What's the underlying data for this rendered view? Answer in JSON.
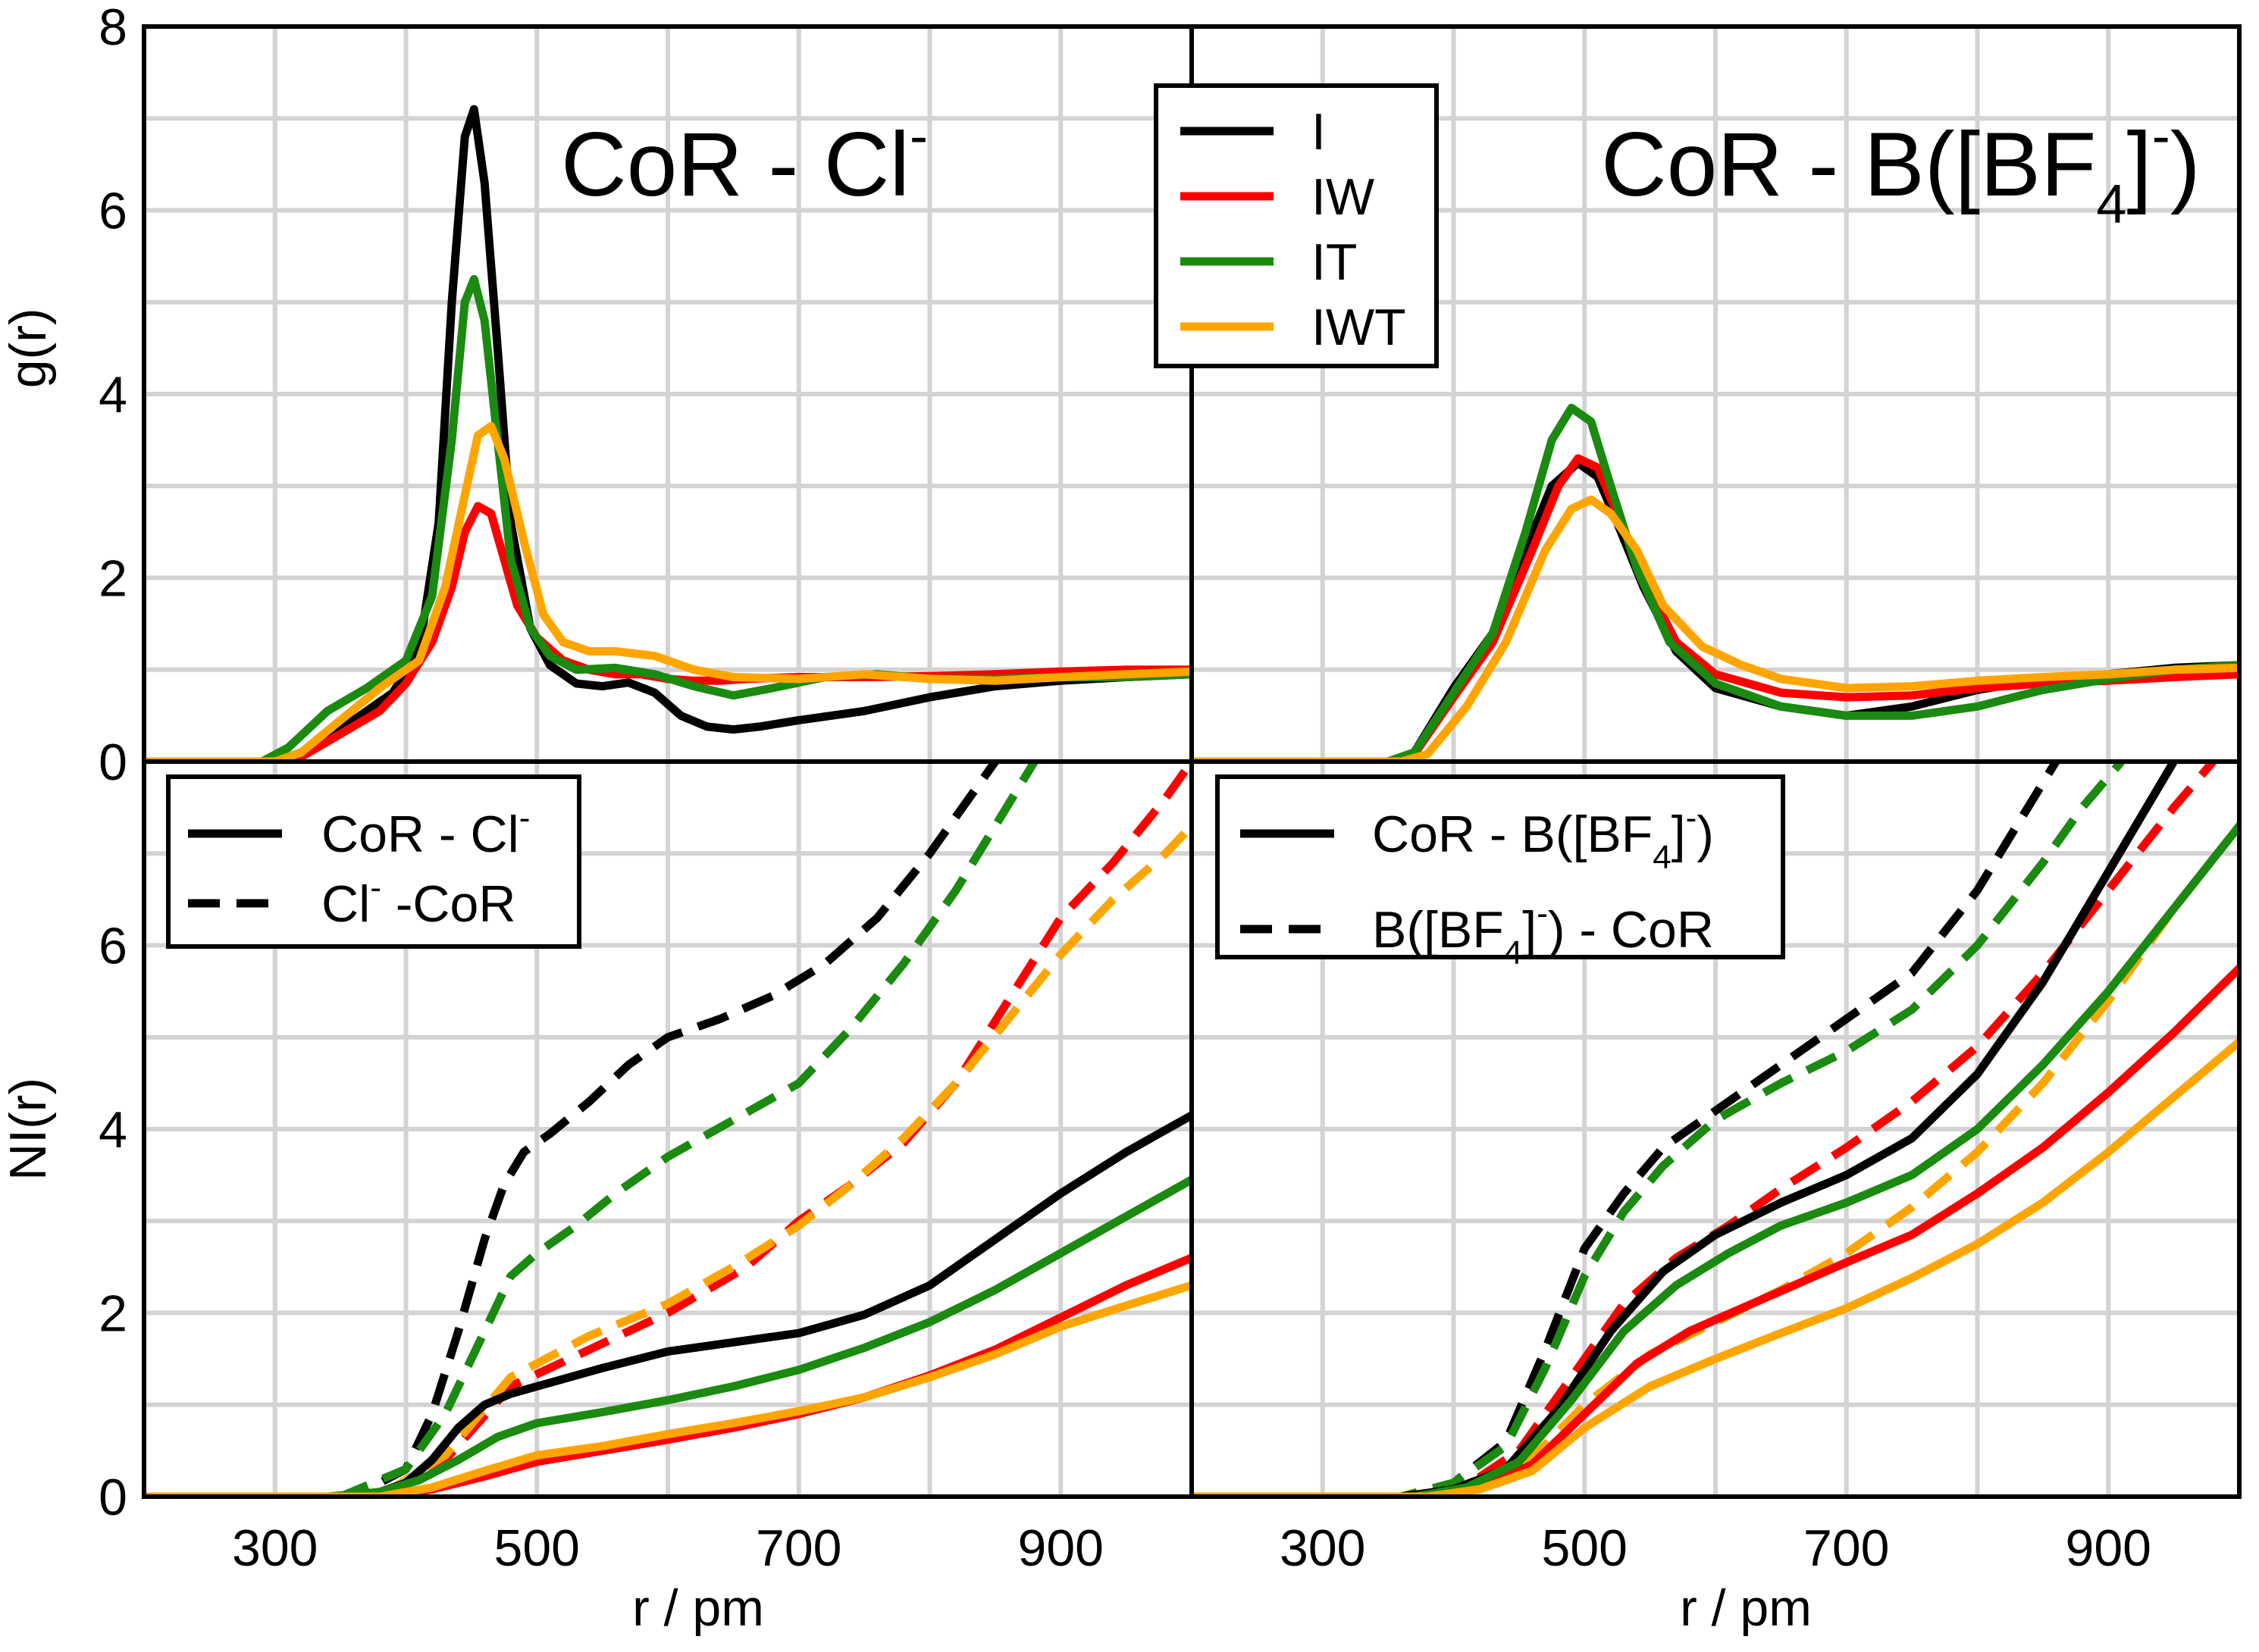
{
  "chart_data": {
    "type": "line",
    "x_axis": {
      "label": "r / pm",
      "range": [
        200,
        1000
      ],
      "ticks": [
        300,
        500,
        700,
        900
      ]
    },
    "top_y_axis": {
      "label": "g(r)",
      "range": [
        0,
        8
      ],
      "ticks": [
        0,
        2,
        4,
        6,
        8
      ]
    },
    "bottom_y_axis": {
      "label": "NI(r)",
      "range": [
        0,
        8
      ],
      "ticks": [
        0,
        2,
        4,
        6
      ]
    },
    "grid": true,
    "colors": {
      "I": "#000000",
      "IW": "#ff0000",
      "IT": "#1a8a10",
      "IWT": "#ffa500"
    },
    "panel_titles": {
      "left": {
        "main": "CoR - Cl",
        "sup": "-"
      },
      "right": {
        "main": "CoR - B([BF",
        "sub": "4",
        "close": "]",
        "sup": "-",
        "end": ")"
      }
    },
    "series_legend": {
      "position": "top-center",
      "entries": [
        "I",
        "IW",
        "IT",
        "IWT"
      ]
    },
    "nl_legend_left": {
      "position": "top-left",
      "solid": {
        "main": "CoR - Cl",
        "sup": "-"
      },
      "dashed": {
        "main": "Cl",
        "sup": "-",
        "end": " -CoR"
      }
    },
    "nl_legend_right": {
      "position": "top-left",
      "solid": {
        "pre": "CoR - B([BF",
        "sub": "4",
        "mid": "]",
        "sup": "-",
        "end": ")"
      },
      "dashed": {
        "pre": "B([BF",
        "sub": "4",
        "mid": "]",
        "sup": "-",
        "end": ") - CoR"
      }
    },
    "panels": {
      "gr_left": [
        {
          "name": "I",
          "x": [
            200,
            300,
            330,
            360,
            390,
            410,
            425,
            435,
            445,
            452,
            460,
            470,
            480,
            495,
            510,
            530,
            550,
            570,
            590,
            610,
            630,
            650,
            670,
            700,
            750,
            800,
            850,
            900,
            950,
            1000
          ],
          "y": [
            0,
            0,
            0.15,
            0.45,
            0.75,
            1.2,
            2.6,
            5.0,
            6.8,
            7.1,
            6.3,
            4.5,
            2.6,
            1.45,
            1.05,
            0.85,
            0.82,
            0.86,
            0.75,
            0.5,
            0.38,
            0.35,
            0.38,
            0.45,
            0.55,
            0.7,
            0.82,
            0.88,
            0.92,
            0.95
          ]
        },
        {
          "name": "IW",
          "x": [
            200,
            300,
            320,
            350,
            380,
            400,
            420,
            435,
            445,
            455,
            465,
            475,
            485,
            500,
            520,
            540,
            560,
            580,
            600,
            620,
            640,
            660,
            700,
            750,
            800,
            850,
            900,
            950,
            1000
          ],
          "y": [
            0,
            0,
            0.05,
            0.3,
            0.55,
            0.85,
            1.3,
            1.9,
            2.5,
            2.78,
            2.7,
            2.2,
            1.7,
            1.35,
            1.1,
            1.0,
            0.95,
            0.95,
            0.9,
            0.88,
            0.88,
            0.9,
            0.92,
            0.92,
            0.93,
            0.95,
            0.98,
            1.0,
            1.0
          ]
        },
        {
          "name": "IT",
          "x": [
            200,
            290,
            310,
            340,
            370,
            400,
            420,
            435,
            445,
            452,
            460,
            470,
            480,
            495,
            510,
            530,
            560,
            590,
            620,
            650,
            680,
            720,
            760,
            800,
            850,
            900,
            950,
            1000
          ],
          "y": [
            0,
            0,
            0.15,
            0.55,
            0.8,
            1.1,
            1.8,
            3.5,
            5.0,
            5.25,
            4.8,
            3.5,
            2.2,
            1.45,
            1.15,
            1.0,
            1.02,
            0.95,
            0.82,
            0.72,
            0.8,
            0.92,
            0.95,
            0.9,
            0.9,
            0.92,
            0.92,
            0.95
          ]
        },
        {
          "name": "IWT",
          "x": [
            200,
            300,
            320,
            350,
            380,
            410,
            430,
            445,
            455,
            465,
            475,
            490,
            505,
            520,
            540,
            560,
            590,
            620,
            650,
            700,
            750,
            800,
            850,
            900,
            950,
            1000
          ],
          "y": [
            0,
            0,
            0.1,
            0.45,
            0.8,
            1.1,
            1.9,
            2.9,
            3.55,
            3.65,
            3.3,
            2.4,
            1.6,
            1.3,
            1.2,
            1.2,
            1.15,
            1.0,
            0.92,
            0.9,
            0.95,
            0.9,
            0.88,
            0.92,
            0.95,
            0.98
          ]
        }
      ],
      "gr_right": [
        {
          "name": "I",
          "x": [
            200,
            350,
            370,
            400,
            430,
            455,
            475,
            495,
            510,
            525,
            545,
            570,
            600,
            650,
            700,
            750,
            800,
            850,
            900,
            950,
            1000
          ],
          "y": [
            0,
            0,
            0.1,
            0.8,
            1.4,
            2.3,
            3.0,
            3.25,
            3.1,
            2.6,
            1.9,
            1.2,
            0.8,
            0.6,
            0.5,
            0.6,
            0.78,
            0.9,
            0.95,
            1.02,
            1.05
          ]
        },
        {
          "name": "IW",
          "x": [
            200,
            350,
            370,
            400,
            430,
            460,
            480,
            495,
            510,
            525,
            545,
            570,
            600,
            650,
            700,
            750,
            800,
            850,
            900,
            950,
            1000
          ],
          "y": [
            0,
            0,
            0.08,
            0.7,
            1.3,
            2.3,
            3.0,
            3.3,
            3.2,
            2.7,
            2.0,
            1.3,
            0.95,
            0.75,
            0.7,
            0.72,
            0.8,
            0.85,
            0.88,
            0.92,
            0.95
          ]
        },
        {
          "name": "IT",
          "x": [
            200,
            350,
            370,
            400,
            430,
            455,
            475,
            490,
            505,
            520,
            540,
            565,
            600,
            650,
            700,
            750,
            800,
            850,
            900,
            950,
            1000
          ],
          "y": [
            0,
            0,
            0.1,
            0.75,
            1.4,
            2.5,
            3.5,
            3.85,
            3.7,
            3.0,
            2.1,
            1.3,
            0.85,
            0.6,
            0.5,
            0.5,
            0.6,
            0.78,
            0.9,
            1.0,
            1.05
          ]
        },
        {
          "name": "IWT",
          "x": [
            200,
            360,
            380,
            410,
            440,
            470,
            490,
            505,
            520,
            540,
            560,
            590,
            620,
            650,
            700,
            750,
            800,
            850,
            900,
            950,
            1000
          ],
          "y": [
            0,
            0,
            0.08,
            0.6,
            1.3,
            2.3,
            2.75,
            2.85,
            2.7,
            2.3,
            1.7,
            1.25,
            1.05,
            0.9,
            0.8,
            0.82,
            0.88,
            0.92,
            0.95,
            1.0,
            1.02
          ]
        }
      ],
      "nl_left_solid": [
        {
          "name": "I",
          "x": [
            200,
            350,
            380,
            400,
            420,
            440,
            460,
            480,
            500,
            550,
            600,
            650,
            700,
            750,
            800,
            850,
            900,
            950,
            1000
          ],
          "y": [
            0,
            0,
            0.05,
            0.15,
            0.4,
            0.75,
            1.0,
            1.12,
            1.2,
            1.4,
            1.58,
            1.68,
            1.78,
            1.98,
            2.3,
            2.8,
            3.3,
            3.75,
            4.15
          ]
        },
        {
          "name": "IW",
          "x": [
            200,
            380,
            420,
            460,
            500,
            550,
            600,
            650,
            700,
            750,
            800,
            850,
            900,
            950,
            1000
          ],
          "y": [
            0,
            0,
            0.08,
            0.22,
            0.38,
            0.5,
            0.62,
            0.75,
            0.9,
            1.08,
            1.32,
            1.6,
            1.95,
            2.3,
            2.6
          ]
        },
        {
          "name": "IT",
          "x": [
            200,
            340,
            380,
            410,
            440,
            470,
            500,
            550,
            600,
            650,
            700,
            750,
            800,
            850,
            900,
            950,
            1000
          ],
          "y": [
            0,
            0,
            0.05,
            0.18,
            0.4,
            0.65,
            0.8,
            0.92,
            1.05,
            1.2,
            1.38,
            1.62,
            1.9,
            2.25,
            2.65,
            3.05,
            3.45
          ]
        },
        {
          "name": "IWT",
          "x": [
            200,
            380,
            420,
            460,
            500,
            550,
            600,
            650,
            700,
            750,
            800,
            850,
            900,
            950,
            1000
          ],
          "y": [
            0,
            0,
            0.1,
            0.28,
            0.45,
            0.55,
            0.68,
            0.8,
            0.93,
            1.08,
            1.3,
            1.55,
            1.85,
            2.08,
            2.3
          ]
        }
      ],
      "nl_left_dashed": [
        {
          "name": "I",
          "x": [
            200,
            360,
            400,
            420,
            440,
            460,
            475,
            490,
            510,
            540,
            570,
            600,
            640,
            680,
            720,
            760,
            800,
            830,
            850
          ],
          "y": [
            0,
            0,
            0.3,
            0.9,
            1.8,
            2.8,
            3.4,
            3.75,
            3.95,
            4.3,
            4.7,
            5.0,
            5.2,
            5.45,
            5.8,
            6.3,
            7.0,
            7.6,
            8.0
          ]
        },
        {
          "name": "IW",
          "x": [
            200,
            380,
            430,
            480,
            540,
            600,
            660,
            700,
            740,
            780,
            820,
            860,
            900,
            940,
            980,
            1000
          ],
          "y": [
            0,
            0,
            0.4,
            1.2,
            1.6,
            2.0,
            2.5,
            3.0,
            3.4,
            3.85,
            4.5,
            5.4,
            6.3,
            6.9,
            7.6,
            8.0
          ]
        },
        {
          "name": "IT",
          "x": [
            200,
            350,
            400,
            430,
            460,
            480,
            500,
            530,
            560,
            600,
            650,
            700,
            740,
            780,
            820,
            850,
            880
          ],
          "y": [
            0,
            0,
            0.3,
            0.9,
            1.8,
            2.4,
            2.65,
            2.95,
            3.3,
            3.7,
            4.1,
            4.5,
            5.1,
            5.8,
            6.6,
            7.3,
            8.0
          ]
        },
        {
          "name": "IWT",
          "x": [
            200,
            380,
            430,
            480,
            540,
            600,
            650,
            700,
            740,
            780,
            820,
            860,
            900,
            940,
            980,
            1000
          ],
          "y": [
            0,
            0,
            0.45,
            1.3,
            1.75,
            2.1,
            2.5,
            2.95,
            3.4,
            3.9,
            4.5,
            5.2,
            5.9,
            6.5,
            7.0,
            7.3
          ]
        }
      ],
      "nl_right_solid": [
        {
          "name": "I",
          "x": [
            200,
            360,
            400,
            440,
            480,
            520,
            560,
            600,
            650,
            700,
            750,
            800,
            850,
            900,
            950
          ],
          "y": [
            0,
            0,
            0.08,
            0.3,
            0.95,
            1.8,
            2.45,
            2.85,
            3.2,
            3.5,
            3.9,
            4.6,
            5.6,
            6.8,
            8.0
          ]
        },
        {
          "name": "IW",
          "x": [
            200,
            380,
            420,
            460,
            500,
            540,
            580,
            620,
            660,
            700,
            750,
            800,
            850,
            900,
            950,
            1000
          ],
          "y": [
            0,
            0,
            0.1,
            0.35,
            0.9,
            1.45,
            1.8,
            2.05,
            2.3,
            2.55,
            2.85,
            3.3,
            3.8,
            4.4,
            5.05,
            5.75
          ]
        },
        {
          "name": "IT",
          "x": [
            200,
            370,
            410,
            450,
            490,
            530,
            570,
            610,
            650,
            700,
            750,
            800,
            850,
            900,
            950,
            1000
          ],
          "y": [
            0,
            0,
            0.1,
            0.38,
            1.05,
            1.8,
            2.3,
            2.65,
            2.95,
            3.2,
            3.5,
            4.0,
            4.7,
            5.5,
            6.4,
            7.3
          ]
        },
        {
          "name": "IWT",
          "x": [
            200,
            380,
            420,
            460,
            500,
            550,
            600,
            650,
            700,
            750,
            800,
            850,
            900,
            950,
            1000
          ],
          "y": [
            0,
            0,
            0.08,
            0.28,
            0.75,
            1.2,
            1.5,
            1.78,
            2.05,
            2.38,
            2.75,
            3.2,
            3.75,
            4.35,
            4.95
          ]
        }
      ],
      "nl_right_dashed": [
        {
          "name": "I",
          "x": [
            200,
            360,
            400,
            440,
            470,
            500,
            530,
            560,
            600,
            650,
            700,
            750,
            800,
            830,
            860
          ],
          "y": [
            0,
            0,
            0.15,
            0.6,
            1.6,
            2.7,
            3.3,
            3.8,
            4.2,
            4.7,
            5.2,
            5.7,
            6.6,
            7.3,
            8.0
          ]
        },
        {
          "name": "IW",
          "x": [
            200,
            370,
            410,
            450,
            490,
            530,
            570,
            610,
            650,
            700,
            750,
            800,
            850,
            900,
            950,
            980
          ],
          "y": [
            0,
            0,
            0.12,
            0.5,
            1.3,
            2.1,
            2.6,
            2.95,
            3.35,
            3.8,
            4.3,
            4.9,
            5.7,
            6.6,
            7.5,
            8.0
          ]
        },
        {
          "name": "IT",
          "x": [
            200,
            360,
            400,
            440,
            470,
            500,
            530,
            560,
            600,
            650,
            700,
            750,
            800,
            850,
            880,
            910
          ],
          "y": [
            0,
            0,
            0.15,
            0.55,
            1.4,
            2.4,
            3.1,
            3.6,
            4.1,
            4.5,
            4.85,
            5.3,
            6.0,
            6.9,
            7.5,
            8.0
          ]
        },
        {
          "name": "IWT",
          "x": [
            200,
            380,
            420,
            460,
            500,
            550,
            600,
            650,
            700,
            750,
            800,
            850,
            900,
            950,
            1000
          ],
          "y": [
            0,
            0,
            0.12,
            0.42,
            1.0,
            1.55,
            1.9,
            2.25,
            2.65,
            3.15,
            3.75,
            4.5,
            5.4,
            6.4,
            7.3
          ]
        }
      ]
    }
  }
}
